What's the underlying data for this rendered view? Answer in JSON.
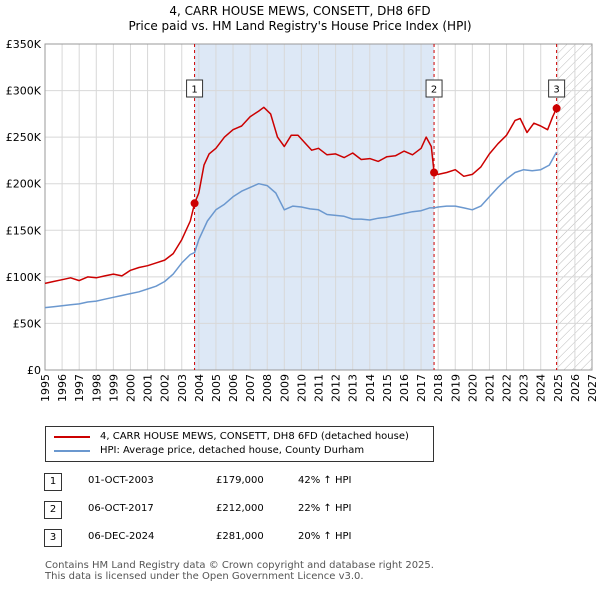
{
  "colors": {
    "property_line": "#cc0000",
    "hpi_line": "#6b98cf",
    "shade": "#dde8f6",
    "future_hatch": "#bbbbbb",
    "grid": "#d8d8d8",
    "vline": "#cc0000"
  },
  "chart_data": {
    "type": "line",
    "title": "4, CARR HOUSE MEWS, CONSETT, DH8 6FD",
    "subtitle": "Price paid vs. HM Land Registry's House Price Index (HPI)",
    "xlim": [
      1995,
      2027
    ],
    "ylim": [
      0,
      350000
    ],
    "y_ticks": [
      {
        "value": 0,
        "label": "£0"
      },
      {
        "value": 50000,
        "label": "£50K"
      },
      {
        "value": 100000,
        "label": "£100K"
      },
      {
        "value": 150000,
        "label": "£150K"
      },
      {
        "value": 200000,
        "label": "£200K"
      },
      {
        "value": 250000,
        "label": "£250K"
      },
      {
        "value": 300000,
        "label": "£300K"
      },
      {
        "value": 350000,
        "label": "£350K"
      }
    ],
    "x_ticks": [
      "1995",
      "1996",
      "1997",
      "1998",
      "1999",
      "2000",
      "2001",
      "2002",
      "2003",
      "2004",
      "2005",
      "2006",
      "2007",
      "2008",
      "2009",
      "2010",
      "2011",
      "2012",
      "2013",
      "2014",
      "2015",
      "2016",
      "2017",
      "2018",
      "2019",
      "2020",
      "2021",
      "2022",
      "2023",
      "2024",
      "2025",
      "2026",
      "2027"
    ],
    "shaded_range": [
      2003.75,
      2017.76
    ],
    "future_from": 2025.0,
    "series": [
      {
        "name": "4, CARR HOUSE MEWS, CONSETT, DH8 6FD (detached house)",
        "x": [
          1995.0,
          1995.5,
          1996.0,
          1996.5,
          1997.0,
          1997.5,
          1998.0,
          1998.5,
          1999.0,
          1999.5,
          2000.0,
          2000.5,
          2001.0,
          2001.5,
          2002.0,
          2002.5,
          2003.0,
          2003.5,
          2003.75,
          2004.0,
          2004.3,
          2004.6,
          2005.0,
          2005.5,
          2006.0,
          2006.5,
          2007.0,
          2007.5,
          2007.8,
          2008.2,
          2008.6,
          2009.0,
          2009.4,
          2009.8,
          2010.2,
          2010.6,
          2011.0,
          2011.5,
          2012.0,
          2012.5,
          2013.0,
          2013.5,
          2014.0,
          2014.5,
          2015.0,
          2015.5,
          2016.0,
          2016.5,
          2017.0,
          2017.3,
          2017.6,
          2017.76,
          2018.0,
          2018.5,
          2019.0,
          2019.5,
          2020.0,
          2020.5,
          2021.0,
          2021.5,
          2022.0,
          2022.5,
          2022.8,
          2023.2,
          2023.6,
          2024.0,
          2024.4,
          2024.7,
          2024.93
        ],
        "values": [
          93000,
          95000,
          97000,
          99000,
          96000,
          100000,
          99000,
          101000,
          103000,
          101000,
          107000,
          110000,
          112000,
          115000,
          118000,
          125000,
          140000,
          160000,
          179000,
          190000,
          220000,
          232000,
          238000,
          250000,
          258000,
          262000,
          272000,
          278000,
          282000,
          275000,
          250000,
          240000,
          252000,
          252000,
          244000,
          236000,
          238000,
          231000,
          232000,
          228000,
          233000,
          226000,
          227000,
          224000,
          229000,
          230000,
          235000,
          231000,
          238000,
          250000,
          240000,
          212000,
          210000,
          212000,
          215000,
          208000,
          210000,
          218000,
          232000,
          243000,
          252000,
          268000,
          270000,
          255000,
          265000,
          262000,
          258000,
          272000,
          281000
        ]
      },
      {
        "name": "HPI: Average price, detached house, County Durham",
        "x": [
          1995.0,
          1995.5,
          1996.0,
          1996.5,
          1997.0,
          1997.5,
          1998.0,
          1998.5,
          1999.0,
          1999.5,
          2000.0,
          2000.5,
          2001.0,
          2001.5,
          2002.0,
          2002.5,
          2003.0,
          2003.5,
          2003.75,
          2004.0,
          2004.5,
          2005.0,
          2005.5,
          2006.0,
          2006.5,
          2007.0,
          2007.5,
          2008.0,
          2008.5,
          2009.0,
          2009.5,
          2010.0,
          2010.5,
          2011.0,
          2011.5,
          2012.0,
          2012.5,
          2013.0,
          2013.5,
          2014.0,
          2014.5,
          2015.0,
          2015.5,
          2016.0,
          2016.5,
          2017.0,
          2017.5,
          2017.76,
          2018.0,
          2018.5,
          2019.0,
          2019.5,
          2020.0,
          2020.5,
          2021.0,
          2021.5,
          2022.0,
          2022.5,
          2023.0,
          2023.5,
          2024.0,
          2024.5,
          2024.93
        ],
        "values": [
          67000,
          68000,
          69000,
          70000,
          71000,
          73000,
          74000,
          76000,
          78000,
          80000,
          82000,
          84000,
          87000,
          90000,
          95000,
          103000,
          115000,
          124000,
          126000,
          140000,
          160000,
          172000,
          178000,
          186000,
          192000,
          196000,
          200000,
          198000,
          190000,
          172000,
          176000,
          175000,
          173000,
          172000,
          167000,
          166000,
          165000,
          162000,
          162000,
          161000,
          163000,
          164000,
          166000,
          168000,
          170000,
          171000,
          174000,
          174000,
          175000,
          176000,
          176000,
          174000,
          172000,
          176000,
          186000,
          196000,
          205000,
          212000,
          215000,
          214000,
          215000,
          220000,
          234000
        ]
      }
    ],
    "markers": [
      {
        "label": "1",
        "x": 2003.75,
        "value": 179000
      },
      {
        "label": "2",
        "x": 2017.76,
        "value": 212000
      },
      {
        "label": "3",
        "x": 2024.93,
        "value": 281000
      }
    ]
  },
  "legend": {
    "items": [
      {
        "label": "4, CARR HOUSE MEWS, CONSETT, DH8 6FD (detached house)"
      },
      {
        "label": "HPI: Average price, detached house, County Durham"
      }
    ]
  },
  "transactions": [
    {
      "num": "1",
      "date": "01-OCT-2003",
      "price": "£179,000",
      "hpi": "42% ↑ HPI"
    },
    {
      "num": "2",
      "date": "06-OCT-2017",
      "price": "£212,000",
      "hpi": "22% ↑ HPI"
    },
    {
      "num": "3",
      "date": "06-DEC-2024",
      "price": "£281,000",
      "hpi": "20% ↑ HPI"
    }
  ],
  "footer": {
    "line1": "Contains HM Land Registry data © Crown copyright and database right 2025.",
    "line2": "This data is licensed under the Open Government Licence v3.0."
  }
}
